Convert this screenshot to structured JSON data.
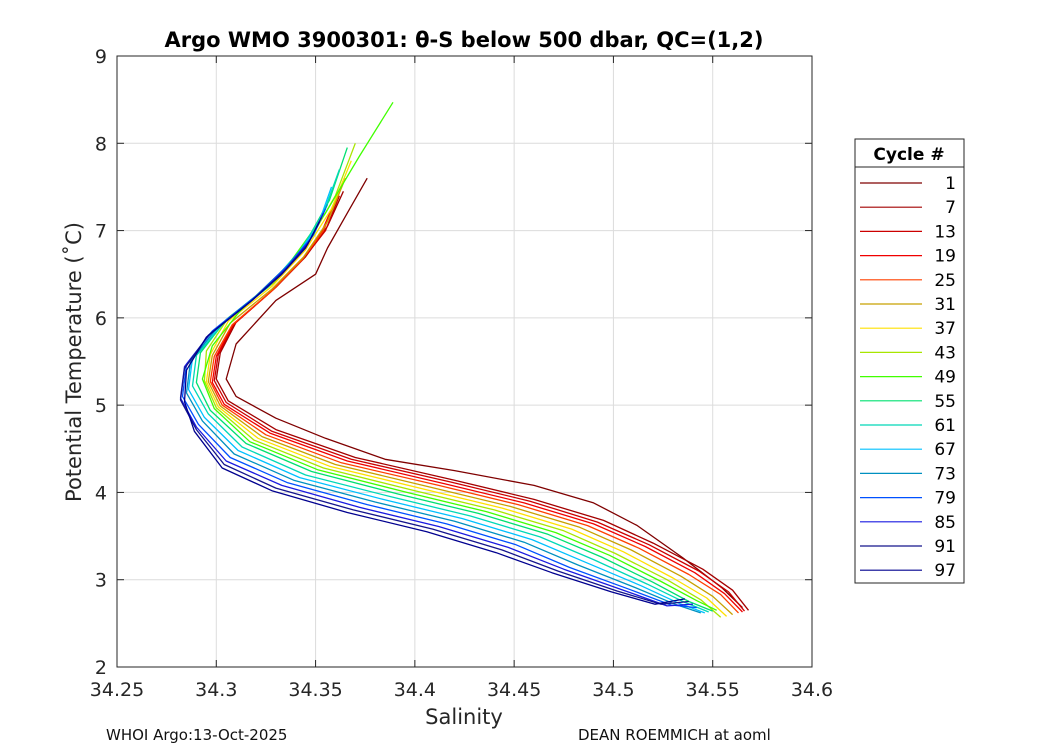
{
  "chart_data": {
    "type": "line",
    "title": "Argo WMO 3900301: θ-S below 500 dbar,  QC=(1,2)",
    "xlabel": "Salinity",
    "ylabel": "Potential Temperature (˚C)",
    "xlim": [
      34.25,
      34.6
    ],
    "ylim": [
      2,
      9
    ],
    "xticks": [
      "34.25",
      "34.3",
      "34.35",
      "34.4",
      "34.45",
      "34.5",
      "34.55",
      "34.6"
    ],
    "yticks": [
      "2",
      "3",
      "4",
      "5",
      "6",
      "7",
      "8",
      "9"
    ],
    "grid": true,
    "legend_position": "right",
    "legend_title": "Cycle #",
    "series": [
      {
        "name": "1",
        "color": "#7f0000",
        "x": [
          34.376,
          34.366,
          34.356,
          34.35,
          34.33,
          34.31,
          34.305,
          34.31,
          34.33,
          34.355,
          34.385,
          34.42,
          34.46,
          34.49,
          34.512,
          34.535,
          34.555,
          34.565
        ],
        "y": [
          7.6,
          7.2,
          6.8,
          6.5,
          6.2,
          5.7,
          5.3,
          5.1,
          4.85,
          4.62,
          4.38,
          4.25,
          4.08,
          3.88,
          3.62,
          3.25,
          2.9,
          2.68
        ]
      },
      {
        "name": "7",
        "color": "#a30000",
        "x": [
          34.364,
          34.356,
          34.345,
          34.33,
          34.31,
          34.302,
          34.3,
          34.306,
          34.33,
          34.37,
          34.42,
          34.46,
          34.495,
          34.52,
          34.545,
          34.56,
          34.568
        ],
        "y": [
          7.45,
          7.05,
          6.7,
          6.35,
          5.95,
          5.6,
          5.3,
          5.05,
          4.72,
          4.4,
          4.14,
          3.92,
          3.68,
          3.42,
          3.12,
          2.88,
          2.65
        ]
      },
      {
        "name": "13",
        "color": "#cc0000",
        "x": [
          34.362,
          34.355,
          34.344,
          34.329,
          34.309,
          34.301,
          34.299,
          34.305,
          34.328,
          34.368,
          34.418,
          34.458,
          34.492,
          34.518,
          34.543,
          34.558,
          34.566
        ],
        "y": [
          7.4,
          7.0,
          6.68,
          6.33,
          5.93,
          5.58,
          5.28,
          5.03,
          4.7,
          4.38,
          4.12,
          3.9,
          3.66,
          3.4,
          3.1,
          2.86,
          2.64
        ]
      },
      {
        "name": "19",
        "color": "#f00000",
        "x": [
          34.36,
          34.353,
          34.343,
          34.328,
          34.308,
          34.3,
          34.298,
          34.304,
          34.327,
          34.366,
          34.415,
          34.455,
          34.49,
          34.516,
          34.541,
          34.556,
          34.565
        ],
        "y": [
          7.35,
          6.98,
          6.66,
          6.31,
          5.91,
          5.56,
          5.26,
          5.01,
          4.68,
          4.36,
          4.1,
          3.88,
          3.64,
          3.38,
          3.08,
          2.84,
          2.63
        ]
      },
      {
        "name": "25",
        "color": "#ff4000",
        "x": [
          34.362,
          34.354,
          34.343,
          34.328,
          34.308,
          34.299,
          34.297,
          34.303,
          34.325,
          34.363,
          34.412,
          34.452,
          34.487,
          34.513,
          34.538,
          34.554,
          34.563
        ],
        "y": [
          7.45,
          7.0,
          6.66,
          6.31,
          5.92,
          5.56,
          5.27,
          5.0,
          4.66,
          4.34,
          4.08,
          3.86,
          3.62,
          3.36,
          3.06,
          2.83,
          2.62
        ]
      },
      {
        "name": "31",
        "color": "#c8a000",
        "x": [
          34.365,
          34.356,
          34.344,
          34.328,
          34.307,
          34.298,
          34.296,
          34.302,
          34.323,
          34.36,
          34.408,
          34.448,
          34.483,
          34.509,
          34.534,
          34.55,
          34.56
        ],
        "y": [
          7.6,
          7.1,
          6.7,
          6.33,
          5.94,
          5.57,
          5.27,
          4.99,
          4.64,
          4.32,
          4.06,
          3.84,
          3.6,
          3.34,
          3.04,
          2.81,
          2.6
        ]
      },
      {
        "name": "37",
        "color": "#ffe000",
        "x": [
          34.368,
          34.358,
          34.345,
          34.328,
          34.306,
          34.297,
          34.295,
          34.301,
          34.321,
          34.357,
          34.404,
          34.444,
          34.479,
          34.505,
          34.53,
          34.547,
          34.557
        ],
        "y": [
          7.8,
          7.25,
          6.78,
          6.36,
          5.96,
          5.58,
          5.27,
          4.98,
          4.62,
          4.3,
          4.04,
          3.82,
          3.58,
          3.32,
          3.02,
          2.79,
          2.58
        ]
      },
      {
        "name": "43",
        "color": "#a8e600",
        "x": [
          34.37,
          34.36,
          34.346,
          34.329,
          34.306,
          34.295,
          34.294,
          34.3,
          34.319,
          34.354,
          34.4,
          34.44,
          34.475,
          34.501,
          34.527,
          34.544,
          34.554
        ],
        "y": [
          8.0,
          7.4,
          6.85,
          6.4,
          6.0,
          5.62,
          5.28,
          4.97,
          4.6,
          4.28,
          4.02,
          3.8,
          3.56,
          3.3,
          3.0,
          2.77,
          2.57
        ]
      },
      {
        "name": "49",
        "color": "#40ff00",
        "x": [
          34.389,
          34.372,
          34.355,
          34.336,
          34.312,
          34.298,
          34.293,
          34.299,
          34.317,
          34.351,
          34.396,
          34.436,
          34.471,
          34.498,
          34.524,
          34.542,
          34.552
        ],
        "y": [
          8.47,
          7.85,
          7.2,
          6.6,
          6.08,
          5.68,
          5.3,
          4.96,
          4.58,
          4.26,
          4.0,
          3.78,
          3.54,
          3.28,
          2.98,
          2.76,
          2.65
        ]
      },
      {
        "name": "55",
        "color": "#00e070",
        "x": [
          34.366,
          34.357,
          34.344,
          34.327,
          34.305,
          34.292,
          34.29,
          34.297,
          34.315,
          34.348,
          34.392,
          34.432,
          34.467,
          34.494,
          34.52,
          34.538,
          34.55
        ],
        "y": [
          7.95,
          7.35,
          6.82,
          6.38,
          5.98,
          5.6,
          5.26,
          4.94,
          4.56,
          4.24,
          3.98,
          3.76,
          3.52,
          3.26,
          2.97,
          2.75,
          2.64
        ]
      },
      {
        "name": "61",
        "color": "#00d8b8",
        "x": [
          34.362,
          34.354,
          34.342,
          34.326,
          34.304,
          34.29,
          34.288,
          34.296,
          34.313,
          34.345,
          34.388,
          34.428,
          34.463,
          34.49,
          34.517,
          34.536,
          34.548
        ],
        "y": [
          7.7,
          7.2,
          6.76,
          6.35,
          5.95,
          5.57,
          5.22,
          4.9,
          4.52,
          4.2,
          3.95,
          3.73,
          3.49,
          3.23,
          2.95,
          2.74,
          2.63
        ]
      },
      {
        "name": "67",
        "color": "#00c0ff",
        "x": [
          34.358,
          34.351,
          34.34,
          34.324,
          34.302,
          34.288,
          34.286,
          34.294,
          34.311,
          34.342,
          34.384,
          34.424,
          34.459,
          34.486,
          34.514,
          34.533,
          34.546
        ],
        "y": [
          7.5,
          7.05,
          6.7,
          6.32,
          5.92,
          5.54,
          5.18,
          4.86,
          4.48,
          4.17,
          3.92,
          3.7,
          3.46,
          3.2,
          2.93,
          2.73,
          2.62
        ]
      },
      {
        "name": "73",
        "color": "#0090c0",
        "x": [
          34.356,
          34.349,
          34.338,
          34.322,
          34.3,
          34.287,
          34.285,
          34.293,
          34.309,
          34.339,
          34.38,
          34.42,
          34.455,
          34.482,
          34.511,
          34.531,
          34.544
        ],
        "y": [
          7.3,
          6.95,
          6.64,
          6.28,
          5.88,
          5.5,
          5.14,
          4.82,
          4.44,
          4.14,
          3.89,
          3.67,
          3.43,
          3.17,
          2.91,
          2.72,
          2.62
        ]
      },
      {
        "name": "79",
        "color": "#0050ff",
        "x": [
          34.355,
          34.348,
          34.336,
          34.32,
          34.298,
          34.285,
          34.283,
          34.291,
          34.307,
          34.336,
          34.376,
          34.416,
          34.451,
          34.478,
          34.508,
          34.529,
          34.542
        ],
        "y": [
          7.25,
          6.92,
          6.6,
          6.25,
          5.85,
          5.47,
          5.1,
          4.78,
          4.4,
          4.11,
          3.86,
          3.64,
          3.4,
          3.14,
          2.89,
          2.71,
          2.68
        ]
      },
      {
        "name": "85",
        "color": "#1a1ae0",
        "x": [
          34.354,
          34.347,
          34.335,
          34.319,
          34.297,
          34.284,
          34.282,
          34.29,
          34.305,
          34.333,
          34.372,
          34.412,
          34.447,
          34.475,
          34.505,
          34.527,
          34.54
        ],
        "y": [
          7.2,
          6.88,
          6.56,
          6.22,
          5.82,
          5.44,
          5.08,
          4.75,
          4.36,
          4.08,
          3.83,
          3.61,
          3.37,
          3.12,
          2.88,
          2.7,
          2.72
        ]
      },
      {
        "name": "91",
        "color": "#14148c",
        "x": [
          34.353,
          34.346,
          34.334,
          34.318,
          34.296,
          34.284,
          34.282,
          34.29,
          34.304,
          34.33,
          34.369,
          34.409,
          34.444,
          34.472,
          34.502,
          34.524,
          34.538
        ],
        "y": [
          7.15,
          6.84,
          6.53,
          6.2,
          5.8,
          5.42,
          5.06,
          4.72,
          4.32,
          4.05,
          3.8,
          3.58,
          3.34,
          3.1,
          2.87,
          2.72,
          2.75
        ]
      },
      {
        "name": "97",
        "color": "#00008f",
        "x": [
          34.352,
          34.345,
          34.333,
          34.317,
          34.295,
          34.285,
          34.284,
          34.289,
          34.303,
          34.328,
          34.366,
          34.406,
          34.441,
          34.469,
          34.499,
          34.521,
          34.536
        ],
        "y": [
          7.1,
          6.8,
          6.5,
          6.18,
          5.78,
          5.4,
          5.04,
          4.7,
          4.28,
          4.02,
          3.77,
          3.55,
          3.31,
          3.08,
          2.86,
          2.72,
          2.78
        ]
      }
    ]
  },
  "footer": {
    "left": "WHOI Argo:13-Oct-2025",
    "right": "DEAN ROEMMICH at aoml"
  }
}
